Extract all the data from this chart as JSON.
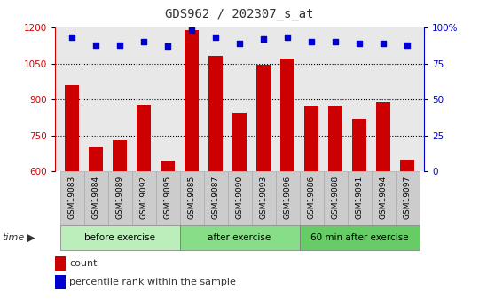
{
  "title": "GDS962 / 202307_s_at",
  "samples": [
    "GSM19083",
    "GSM19084",
    "GSM19089",
    "GSM19092",
    "GSM19095",
    "GSM19085",
    "GSM19087",
    "GSM19090",
    "GSM19093",
    "GSM19096",
    "GSM19086",
    "GSM19088",
    "GSM19091",
    "GSM19094",
    "GSM19097"
  ],
  "counts": [
    960,
    700,
    730,
    880,
    645,
    1190,
    1080,
    845,
    1045,
    1070,
    870,
    870,
    820,
    890,
    650
  ],
  "percentile_ranks": [
    93,
    88,
    88,
    90,
    87,
    98,
    93,
    89,
    92,
    93,
    90,
    90,
    89,
    89,
    88
  ],
  "groups": [
    {
      "label": "before exercise",
      "start": 0,
      "end": 5,
      "color": "#bbeebb"
    },
    {
      "label": "after exercise",
      "start": 5,
      "end": 10,
      "color": "#88dd88"
    },
    {
      "label": "60 min after exercise",
      "start": 10,
      "end": 15,
      "color": "#66cc66"
    }
  ],
  "ylim_left": [
    600,
    1200
  ],
  "ylim_right": [
    0,
    100
  ],
  "yticks_left": [
    600,
    750,
    900,
    1050,
    1200
  ],
  "yticks_right": [
    0,
    25,
    50,
    75,
    100
  ],
  "bar_color": "#cc0000",
  "scatter_color": "#0000cc",
  "title_color": "#333333",
  "left_axis_color": "#cc0000",
  "right_axis_color": "#0000cc",
  "grid_color": "#000000",
  "background_color": "#ffffff",
  "plot_bg_color": "#e8e8e8",
  "xtick_bg_color": "#cccccc"
}
